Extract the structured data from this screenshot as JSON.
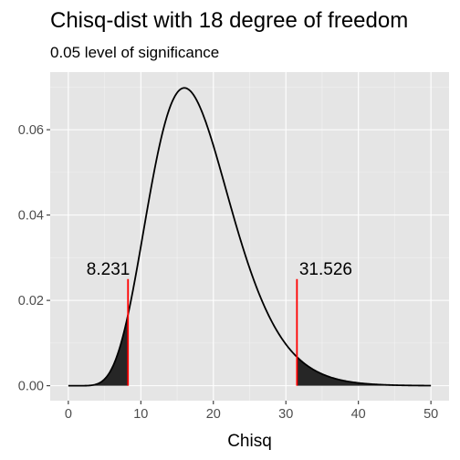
{
  "chart_data": {
    "type": "area",
    "title": "Chisq-dist with 18 degree of freedom",
    "subtitle": "0.05 level of significance",
    "xlabel": "Chisq",
    "ylabel": "",
    "df": 18,
    "xlim": [
      -2.5,
      52.5
    ],
    "ylim": [
      -0.0035,
      0.0735
    ],
    "x_ticks": [
      0,
      10,
      20,
      30,
      40,
      50
    ],
    "x_tick_labels": [
      "0",
      "10",
      "20",
      "30",
      "40",
      "50"
    ],
    "y_ticks": [
      0.0,
      0.02,
      0.04,
      0.06
    ],
    "y_tick_labels": [
      "0.00",
      "0.02",
      "0.04",
      "0.06"
    ],
    "curve_x_range": [
      0,
      50
    ],
    "shaded_regions": [
      {
        "from": 0,
        "to": 8.231
      },
      {
        "from": 31.526,
        "to": 50
      }
    ],
    "critical_lines": [
      {
        "x": 8.231,
        "y_top": 0.025,
        "label": "8.231",
        "color": "#ff0000"
      },
      {
        "x": 31.526,
        "y_top": 0.025,
        "label": "31.526",
        "color": "#ff0000"
      }
    ],
    "annotations": [
      {
        "x": 5.5,
        "y": 0.0275,
        "text": "8.231"
      },
      {
        "x": 35.5,
        "y": 0.0275,
        "text": "31.526"
      }
    ],
    "grid": true,
    "colors": {
      "panel_background": "#e5e5e5",
      "grid_major": "#ffffff",
      "curve": "#000000",
      "fill": "#262626",
      "critical_line": "#ff0000"
    }
  }
}
